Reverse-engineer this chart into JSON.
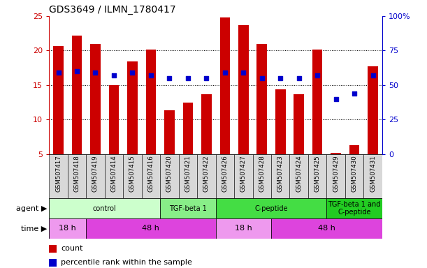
{
  "title": "GDS3649 / ILMN_1780417",
  "samples": [
    "GSM507417",
    "GSM507418",
    "GSM507419",
    "GSM507414",
    "GSM507415",
    "GSM507416",
    "GSM507420",
    "GSM507421",
    "GSM507422",
    "GSM507426",
    "GSM507427",
    "GSM507428",
    "GSM507423",
    "GSM507424",
    "GSM507425",
    "GSM507429",
    "GSM507430",
    "GSM507431"
  ],
  "counts": [
    20.7,
    22.2,
    21.0,
    15.0,
    18.4,
    20.1,
    11.4,
    12.5,
    13.7,
    24.8,
    23.7,
    21.0,
    14.4,
    13.7,
    20.1,
    5.2,
    6.3,
    17.7
  ],
  "percentiles": [
    59,
    60,
    59,
    57,
    59,
    57,
    55,
    55,
    55,
    59,
    59,
    55,
    55,
    55,
    57,
    40,
    44,
    57
  ],
  "ylim_left": [
    5,
    25
  ],
  "ylim_right": [
    0,
    100
  ],
  "yticks_left": [
    5,
    10,
    15,
    20,
    25
  ],
  "yticks_right": [
    0,
    25,
    50,
    75,
    100
  ],
  "bar_color": "#cc0000",
  "dot_color": "#0000cc",
  "agent_groups": [
    {
      "label": "control",
      "start": 0,
      "end": 5,
      "color": "#ccffcc"
    },
    {
      "label": "TGF-beta 1",
      "start": 6,
      "end": 8,
      "color": "#88ee88"
    },
    {
      "label": "C-peptide",
      "start": 9,
      "end": 14,
      "color": "#44dd44"
    },
    {
      "label": "TGF-beta 1 and\nC-peptide",
      "start": 15,
      "end": 17,
      "color": "#22cc22"
    }
  ],
  "time_groups": [
    {
      "label": "18 h",
      "start": 0,
      "end": 1,
      "color": "#ee99ee"
    },
    {
      "label": "48 h",
      "start": 2,
      "end": 8,
      "color": "#dd44dd"
    },
    {
      "label": "18 h",
      "start": 9,
      "end": 11,
      "color": "#ee99ee"
    },
    {
      "label": "48 h",
      "start": 12,
      "end": 17,
      "color": "#dd44dd"
    }
  ],
  "legend_items": [
    {
      "label": "count",
      "color": "#cc0000"
    },
    {
      "label": "percentile rank within the sample",
      "color": "#0000cc"
    }
  ],
  "left_axis_color": "#cc0000",
  "right_axis_color": "#0000cc",
  "xtick_bg": "#d8d8d8",
  "fig_width": 6.11,
  "fig_height": 3.84,
  "dpi": 100
}
